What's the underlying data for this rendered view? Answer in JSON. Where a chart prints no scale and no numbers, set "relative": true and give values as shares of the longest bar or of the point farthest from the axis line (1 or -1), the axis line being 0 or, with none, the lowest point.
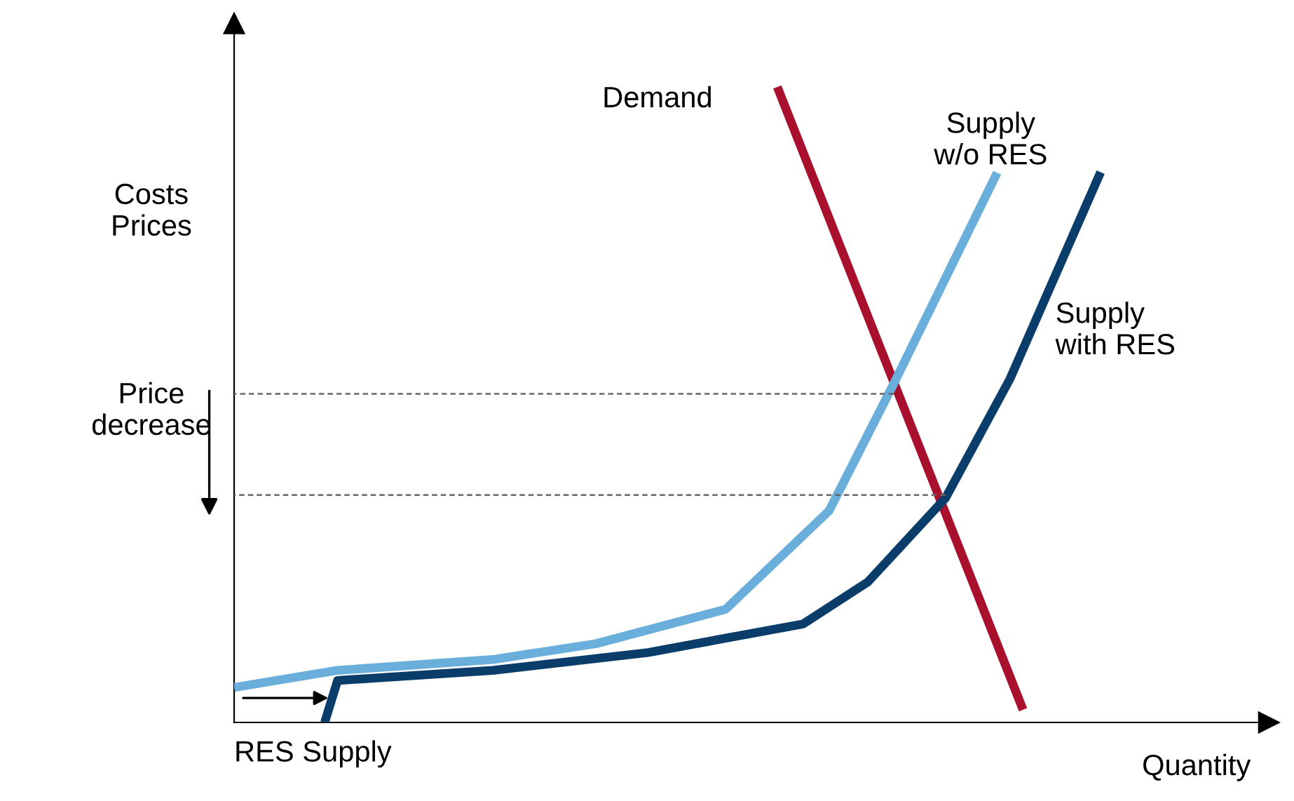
{
  "chart_data": {
    "type": "line",
    "relative": true,
    "xlabel": "Quantity",
    "ylabel": "Costs\nPrices",
    "marker": "none",
    "annotations": [
      "Price\ndecrease",
      "RES Supply"
    ],
    "categories": [
      null,
      null,
      null,
      null,
      null,
      null,
      null,
      null,
      null,
      null,
      null,
      null,
      null,
      null,
      null,
      null,
      null,
      null,
      null,
      null,
      null,
      null,
      null,
      null,
      null,
      null,
      null,
      null,
      null,
      null,
      null,
      null,
      null,
      null,
      null,
      null,
      null,
      null,
      null,
      null,
      null,
      null,
      null,
      null,
      null,
      null,
      null,
      null,
      null,
      null,
      null,
      null,
      null,
      null,
      null,
      null,
      null,
      null,
      null,
      null,
      null,
      null,
      null,
      null,
      null,
      null,
      null,
      null,
      null,
      null,
      null,
      null,
      null,
      null,
      null,
      null,
      null,
      null,
      null,
      null,
      null
    ],
    "series": [
      {
        "name": "Demand",
        "color": "#a8102e",
        "values": [
          null,
          null,
          null,
          null,
          null,
          null,
          null,
          null,
          null,
          null,
          null,
          null,
          null,
          null,
          null,
          null,
          null,
          null,
          null,
          null,
          null,
          null,
          null,
          null,
          null,
          null,
          null,
          null,
          null,
          null,
          null,
          null,
          null,
          null,
          null,
          null,
          null,
          null,
          null,
          null,
          null,
          null,
          1,
          null,
          null,
          null,
          null,
          null,
          null,
          null,
          null,
          null,
          null,
          null,
          null,
          null,
          null,
          null,
          null,
          null,
          null,
          0.02,
          null,
          null,
          null,
          null,
          null,
          null,
          null,
          null,
          null,
          null,
          null,
          null,
          null,
          null,
          null,
          null,
          null,
          null,
          null
        ]
      },
      {
        "name": "Supply\nw/o RES",
        "color": "#6aaedb",
        "values": [
          0.055,
          null,
          null,
          null,
          null,
          null,
          null,
          null,
          0.082,
          null,
          null,
          null,
          null,
          null,
          null,
          null,
          null,
          null,
          null,
          null,
          0.099,
          null,
          null,
          null,
          null,
          null,
          null,
          null,
          0.124,
          null,
          null,
          null,
          null,
          null,
          null,
          null,
          null,
          null,
          0.178,
          null,
          null,
          null,
          null,
          null,
          null,
          null,
          0.333,
          null,
          null,
          null,
          null,
          0.533,
          null,
          null,
          null,
          null,
          null,
          null,
          null,
          0.865,
          null,
          null,
          null,
          null,
          null,
          null,
          null,
          null,
          null,
          null,
          null,
          null,
          null,
          null,
          null,
          null,
          null,
          null,
          null,
          null,
          null
        ]
      },
      {
        "name": "Supply\nwith RES",
        "color": "#0b3d6b",
        "values": [
          null,
          null,
          null,
          null,
          null,
          null,
          null,
          0,
          0.066,
          null,
          null,
          null,
          null,
          null,
          null,
          null,
          null,
          null,
          null,
          null,
          0.082,
          null,
          null,
          null,
          null,
          null,
          null,
          null,
          null,
          null,
          null,
          null,
          0.11,
          null,
          null,
          null,
          null,
          null,
          null,
          null,
          null,
          null,
          null,
          null,
          0.155,
          null,
          null,
          null,
          null,
          0.221,
          null,
          null,
          null,
          null,
          null,
          0.353,
          null,
          null,
          null,
          null,
          0.541,
          null,
          null,
          null,
          null,
          null,
          null,
          0.866,
          null,
          null,
          null,
          null,
          null,
          null,
          null,
          null,
          null,
          null,
          null,
          null,
          null
        ]
      },
      {
        "color": "#666666",
        "line_style": "dashed",
        "values": [
          0.517,
          null,
          null,
          null,
          null,
          null,
          null,
          null,
          null,
          null,
          null,
          null,
          null,
          null,
          null,
          null,
          null,
          null,
          null,
          null,
          null,
          null,
          null,
          null,
          null,
          null,
          null,
          null,
          null,
          null,
          null,
          null,
          null,
          null,
          null,
          null,
          null,
          null,
          null,
          null,
          null,
          null,
          null,
          null,
          null,
          null,
          null,
          null,
          null,
          null,
          null,
          0.517,
          null,
          null,
          null,
          null,
          null,
          null,
          null,
          null,
          null,
          null,
          null,
          null,
          null,
          null,
          null,
          null,
          null,
          null,
          null,
          null,
          null,
          null,
          null,
          null,
          null,
          null,
          null,
          null,
          null
        ]
      },
      {
        "color": "#666666",
        "line_style": "dashed",
        "values": [
          0.358,
          null,
          null,
          null,
          null,
          null,
          null,
          null,
          null,
          null,
          null,
          null,
          null,
          null,
          null,
          null,
          null,
          null,
          null,
          null,
          null,
          null,
          null,
          null,
          null,
          null,
          null,
          null,
          null,
          null,
          null,
          null,
          null,
          null,
          null,
          null,
          null,
          null,
          null,
          null,
          null,
          null,
          null,
          null,
          null,
          null,
          null,
          null,
          null,
          null,
          null,
          null,
          null,
          null,
          null,
          0.358,
          null,
          null,
          null,
          null,
          null,
          null,
          null,
          null,
          null,
          null,
          null,
          null,
          null,
          null,
          null,
          null,
          null,
          null,
          null,
          null,
          null,
          null,
          null,
          null,
          null
        ]
      }
    ]
  }
}
